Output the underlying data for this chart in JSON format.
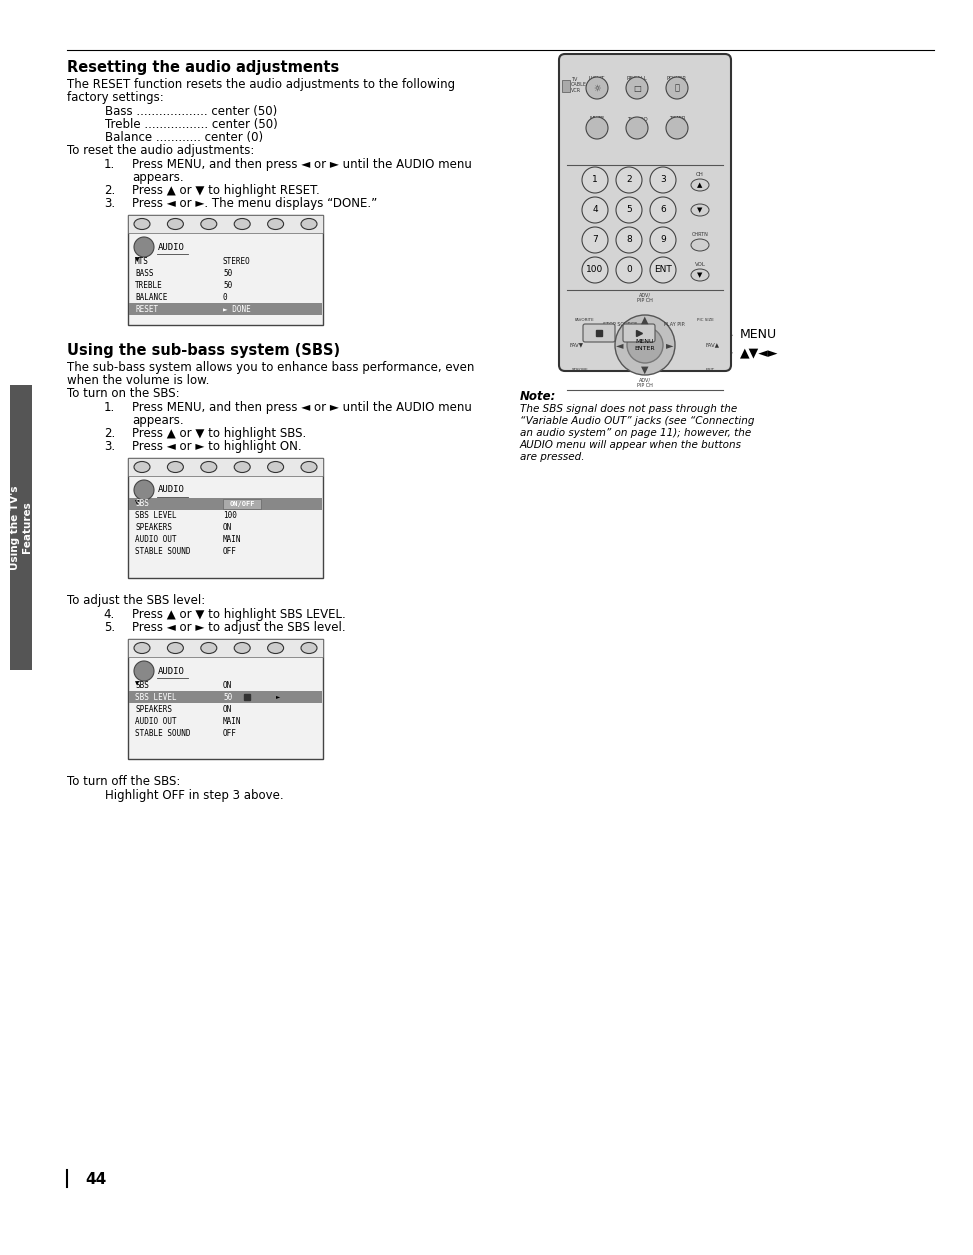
{
  "page_bg": "#ffffff",
  "page_number": "44",
  "sidebar_color": "#555555",
  "sidebar_text": "Using the TV's\nFeatures",
  "title1": "Resetting the audio adjustments",
  "title2": "Using the sub-bass system (SBS)",
  "section1_intro_line1": "The RESET function resets the audio adjustments to the following",
  "section1_intro_line2": "factory settings:",
  "settings": [
    "Bass ................... center (50)",
    "Treble ................. center (50)",
    "Balance ............ center (0)"
  ],
  "section1_steps_intro": "To reset the audio adjustments:",
  "section1_steps": [
    [
      "Press MENU, and then press ◄ or ► until the AUDIO menu",
      "appears."
    ],
    [
      "Press ▲ or ▼ to highlight RESET."
    ],
    [
      "Press ◄ or ►. The menu displays “DONE.”"
    ]
  ],
  "screen1_rows": [
    [
      "MTS",
      "STEREO"
    ],
    [
      "BASS",
      "50"
    ],
    [
      "TREBLE",
      "50"
    ],
    [
      "BALANCE",
      "0"
    ],
    [
      "RESET",
      "► DONE"
    ]
  ],
  "screen1_highlight_row": 4,
  "section2_intro_line1": "The sub-bass system allows you to enhance bass performance, even",
  "section2_intro_line2": "when the volume is low.",
  "section2_steps_intro": "To turn on the SBS:",
  "section2_steps": [
    [
      "Press MENU, and then press ◄ or ► until the AUDIO menu",
      "appears."
    ],
    [
      "Press ▲ or ▼ to highlight SBS."
    ],
    [
      "Press ◄ or ► to highlight ON."
    ]
  ],
  "screen2_rows": [
    [
      "SBS",
      "ON/OFF"
    ],
    [
      "SBS LEVEL",
      "100"
    ],
    [
      "SPEAKERS",
      "ON"
    ],
    [
      "AUDIO OUT",
      "MAIN"
    ],
    [
      "STABLE SOUND",
      "OFF"
    ]
  ],
  "screen2_highlight_row": 0,
  "section2b_intro": "To adjust the SBS level:",
  "section2b_steps": [
    [
      "Press ▲ or ▼ to highlight SBS LEVEL."
    ],
    [
      "Press ◄ or ► to adjust the SBS level."
    ]
  ],
  "screen3_rows": [
    [
      "SBS",
      "ON"
    ],
    [
      "SBS LEVEL",
      "50◄───►"
    ],
    [
      "SPEAKERS",
      "ON"
    ],
    [
      "AUDIO OUT",
      "MAIN"
    ],
    [
      "STABLE SOUND",
      "OFF"
    ]
  ],
  "screen3_highlight_row": 1,
  "section2c_intro": "To turn off the SBS:",
  "section2c_text": "Highlight OFF in step 3 above.",
  "note_title": "Note:",
  "note_text": [
    "The SBS signal does not pass through the",
    "“Variable Audio OUT” jacks (see “Connecting",
    "an audio system” on page 11); however, the",
    "AUDIO menu will appear when the buttons",
    "are pressed."
  ]
}
